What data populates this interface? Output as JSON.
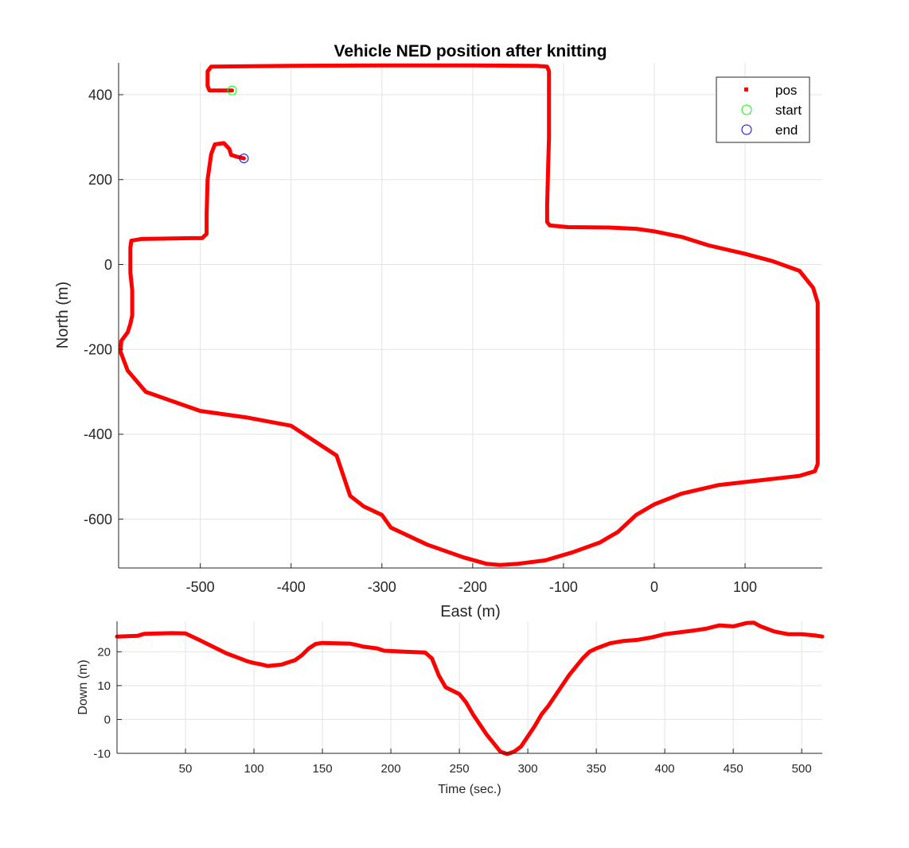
{
  "chart_data": [
    {
      "type": "line",
      "title": "Vehicle NED position after knitting",
      "xlabel": "East (m)",
      "ylabel": "North (m)",
      "xlim": [
        -590,
        185
      ],
      "ylim": [
        -715,
        475
      ],
      "xticks": [
        -500,
        -400,
        -300,
        -200,
        -100,
        0,
        100
      ],
      "yticks": [
        -600,
        -400,
        -200,
        0,
        200,
        400
      ],
      "xtick_labels": [
        "-500",
        "-400",
        "-300",
        "-200",
        "-100",
        "0",
        "100"
      ],
      "ytick_labels": [
        "-600",
        "-400",
        "-200",
        "0",
        "200",
        "400"
      ],
      "grid": true,
      "legend_position": "top-right",
      "legend": [
        {
          "label": "pos",
          "color": "#ff0000",
          "marker": "square"
        },
        {
          "label": "start",
          "color": "#00ff00",
          "marker": "circle"
        },
        {
          "label": "end",
          "color": "#0000ff",
          "marker": "circle"
        }
      ],
      "series": [
        {
          "name": "pos",
          "color": "#ff0000",
          "points": [
            [
              -465,
              410
            ],
            [
              -490,
              410
            ],
            [
              -492,
              420
            ],
            [
              -492,
              455
            ],
            [
              -488,
              466
            ],
            [
              -400,
              468
            ],
            [
              -300,
              469
            ],
            [
              -200,
              469
            ],
            [
              -130,
              468
            ],
            [
              -118,
              466
            ],
            [
              -116,
              455
            ],
            [
              -116,
              380
            ],
            [
              -116,
              300
            ],
            [
              -117,
              220
            ],
            [
              -118,
              140
            ],
            [
              -118,
              100
            ],
            [
              -115,
              92
            ],
            [
              -95,
              88
            ],
            [
              -50,
              87
            ],
            [
              -20,
              84
            ],
            [
              0,
              78
            ],
            [
              30,
              65
            ],
            [
              60,
              45
            ],
            [
              100,
              25
            ],
            [
              130,
              8
            ],
            [
              160,
              -15
            ],
            [
              175,
              -55
            ],
            [
              180,
              -90
            ],
            [
              180,
              -200
            ],
            [
              180,
              -300
            ],
            [
              180,
              -400
            ],
            [
              180,
              -470
            ],
            [
              177,
              -487
            ],
            [
              160,
              -498
            ],
            [
              110,
              -510
            ],
            [
              70,
              -520
            ],
            [
              30,
              -540
            ],
            [
              0,
              -565
            ],
            [
              -20,
              -590
            ],
            [
              -40,
              -630
            ],
            [
              -60,
              -655
            ],
            [
              -90,
              -678
            ],
            [
              -120,
              -697
            ],
            [
              -150,
              -705
            ],
            [
              -170,
              -708
            ],
            [
              -185,
              -705
            ],
            [
              -210,
              -690
            ],
            [
              -250,
              -660
            ],
            [
              -290,
              -620
            ],
            [
              -300,
              -590
            ],
            [
              -320,
              -570
            ],
            [
              -335,
              -545
            ],
            [
              -350,
              -450
            ],
            [
              -400,
              -380
            ],
            [
              -450,
              -360
            ],
            [
              -500,
              -345
            ],
            [
              -520,
              -330
            ],
            [
              -560,
              -300
            ],
            [
              -580,
              -250
            ],
            [
              -588,
              -205
            ],
            [
              -587,
              -180
            ],
            [
              -580,
              -160
            ],
            [
              -577,
              -140
            ],
            [
              -575,
              -120
            ],
            [
              -575,
              -60
            ],
            [
              -577,
              -20
            ],
            [
              -577,
              40
            ],
            [
              -576,
              56
            ],
            [
              -565,
              60
            ],
            [
              -510,
              62
            ],
            [
              -498,
              62
            ],
            [
              -493,
              72
            ],
            [
              -493,
              120
            ],
            [
              -492,
              200
            ],
            [
              -488,
              260
            ],
            [
              -484,
              283
            ],
            [
              -474,
              286
            ],
            [
              -468,
              272
            ],
            [
              -466,
              258
            ],
            [
              -460,
              254
            ],
            [
              -452,
              250
            ]
          ]
        },
        {
          "name": "start",
          "color": "#00ff00",
          "points": [
            [
              -465,
              410
            ]
          ]
        },
        {
          "name": "end",
          "color": "#0000ff",
          "points": [
            [
              -452,
              250
            ]
          ]
        }
      ]
    },
    {
      "type": "line",
      "title": "",
      "xlabel": "Time (sec.)",
      "ylabel": "Down (m)",
      "xlim": [
        0,
        515
      ],
      "ylim": [
        -10,
        29
      ],
      "xticks": [
        50,
        100,
        150,
        200,
        250,
        300,
        350,
        400,
        450,
        500
      ],
      "yticks": [
        -10,
        0,
        10,
        20
      ],
      "xtick_labels": [
        "50",
        "100",
        "150",
        "200",
        "250",
        "300",
        "350",
        "400",
        "450",
        "500"
      ],
      "ytick_labels": [
        "-10",
        "0",
        "10",
        "20"
      ],
      "grid": true,
      "series": [
        {
          "name": "pos",
          "color": "#ff0000",
          "points": [
            [
              0,
              24.5
            ],
            [
              15,
              24.7
            ],
            [
              20,
              25.3
            ],
            [
              40,
              25.5
            ],
            [
              50,
              25.4
            ],
            [
              60,
              23.5
            ],
            [
              70,
              21.5
            ],
            [
              80,
              19.5
            ],
            [
              90,
              18
            ],
            [
              95,
              17.2
            ],
            [
              100,
              16.7
            ],
            [
              105,
              16.3
            ],
            [
              110,
              15.8
            ],
            [
              120,
              16.2
            ],
            [
              130,
              17.5
            ],
            [
              135,
              19
            ],
            [
              140,
              21
            ],
            [
              145,
              22.3
            ],
            [
              150,
              22.6
            ],
            [
              170,
              22.4
            ],
            [
              175,
              22
            ],
            [
              180,
              21.5
            ],
            [
              190,
              21
            ],
            [
              195,
              20.3
            ],
            [
              210,
              20
            ],
            [
              225,
              19.8
            ],
            [
              230,
              18
            ],
            [
              235,
              13
            ],
            [
              240,
              9.5
            ],
            [
              250,
              7.5
            ],
            [
              255,
              5
            ],
            [
              260,
              1.5
            ],
            [
              265,
              -1.5
            ],
            [
              270,
              -4.5
            ],
            [
              275,
              -7
            ],
            [
              280,
              -9.5
            ],
            [
              285,
              -10.2
            ],
            [
              290,
              -9.5
            ],
            [
              295,
              -8
            ],
            [
              300,
              -5
            ],
            [
              305,
              -2
            ],
            [
              310,
              1.5
            ],
            [
              315,
              4
            ],
            [
              320,
              7
            ],
            [
              330,
              13
            ],
            [
              340,
              18
            ],
            [
              345,
              20
            ],
            [
              350,
              21
            ],
            [
              360,
              22.5
            ],
            [
              370,
              23.2
            ],
            [
              380,
              23.5
            ],
            [
              390,
              24.2
            ],
            [
              400,
              25.2
            ],
            [
              420,
              26.2
            ],
            [
              430,
              26.8
            ],
            [
              440,
              27.8
            ],
            [
              450,
              27.5
            ],
            [
              460,
              28.5
            ],
            [
              465,
              28.6
            ],
            [
              470,
              27.5
            ],
            [
              480,
              26
            ],
            [
              490,
              25.2
            ],
            [
              500,
              25.2
            ],
            [
              510,
              24.8
            ],
            [
              515,
              24.5
            ]
          ]
        }
      ]
    }
  ]
}
